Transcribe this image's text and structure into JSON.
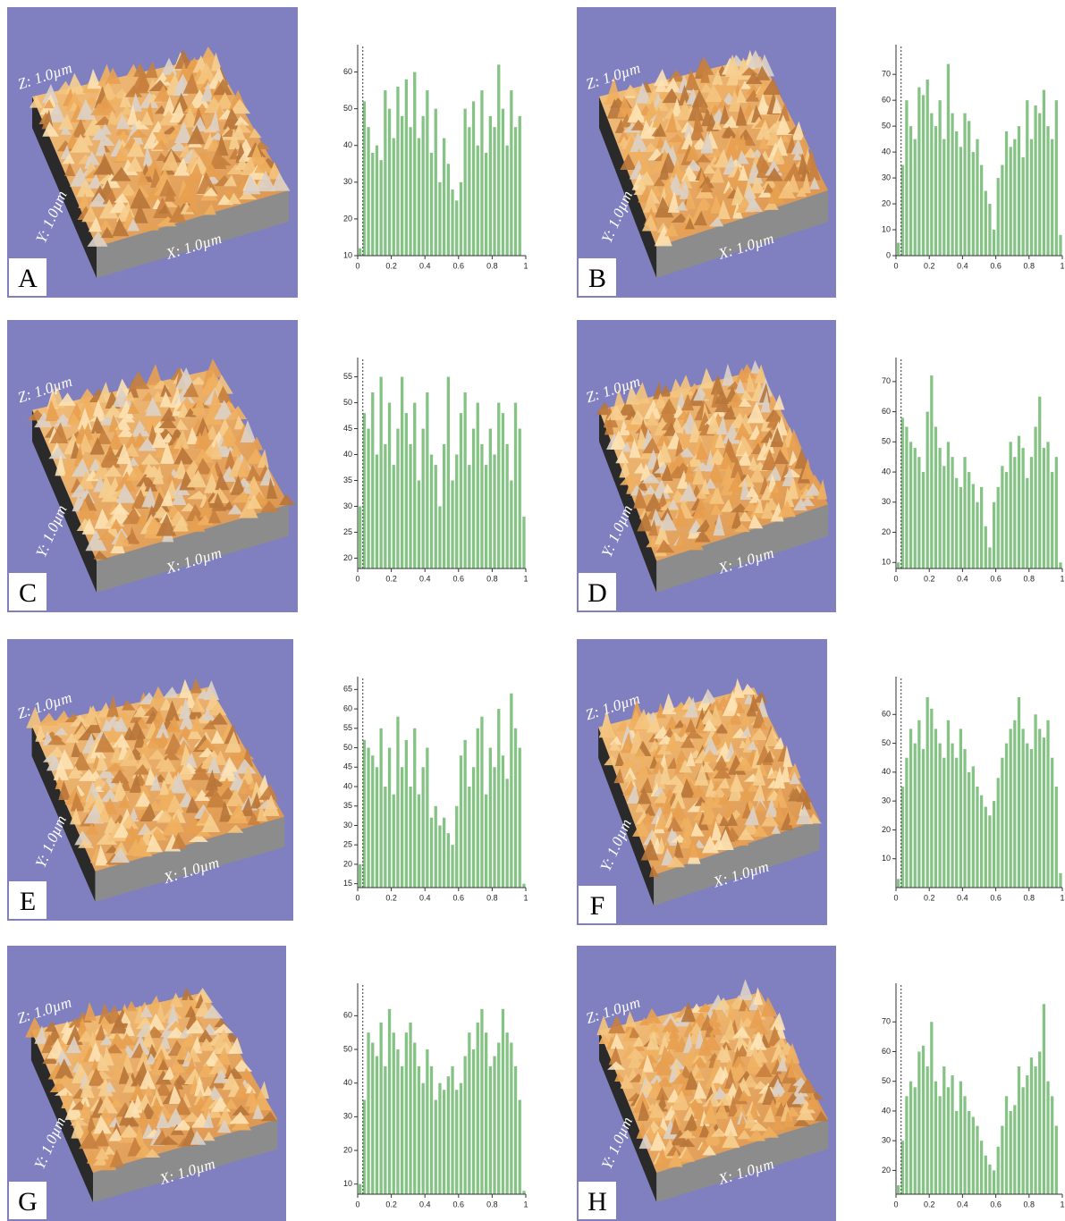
{
  "panels": [
    {
      "label": "A",
      "z": "Z: 1.0µm",
      "y": "Y: 1.0µm",
      "x": "X: 1.0µm"
    },
    {
      "label": "B",
      "z": "Z: 1.0µm",
      "y": "Y: 1.0µm",
      "x": "X: 1.0µm"
    },
    {
      "label": "C",
      "z": "Z: 1.0µm",
      "y": "Y: 1.0µm",
      "x": "X: 1.0µm"
    },
    {
      "label": "D",
      "z": "Z: 1.0µm",
      "y": "Y: 1.0µm",
      "x": "X: 1.0µm"
    },
    {
      "label": "E",
      "z": "Z: 1.0µm",
      "y": "Y: 1.0µm",
      "x": "X: 1.0µm"
    },
    {
      "label": "F",
      "z": "Z: 1.0µm",
      "y": "Y: 1.0µm",
      "x": "X: 1.0µm"
    },
    {
      "label": "G",
      "z": "Z: 1.0µm",
      "y": "Y: 1.0µm",
      "x": "X: 1.0µm"
    },
    {
      "label": "H",
      "z": "Z: 1.0µm",
      "y": "Y: 1.0µm",
      "x": "X: 1.0µm"
    }
  ],
  "chart_data": [
    {
      "type": "bar",
      "color": "#84c384",
      "xlim": [
        0,
        1
      ],
      "xticks": [
        0,
        0.2,
        0.4,
        0.6,
        0.8,
        1
      ],
      "ylim": [
        10,
        65
      ],
      "yticks": [
        10,
        20,
        30,
        40,
        50,
        60
      ],
      "x": [
        0,
        0.025,
        0.05,
        0.075,
        0.1,
        0.125,
        0.15,
        0.175,
        0.2,
        0.225,
        0.25,
        0.275,
        0.3,
        0.325,
        0.35,
        0.375,
        0.4,
        0.425,
        0.45,
        0.475,
        0.5,
        0.525,
        0.55,
        0.575,
        0.6,
        0.625,
        0.65,
        0.675,
        0.7,
        0.725,
        0.75,
        0.775,
        0.8,
        0.825,
        0.85,
        0.875,
        0.9,
        0.925,
        0.95,
        0.975
      ],
      "values": [
        12,
        52,
        45,
        38,
        40,
        36,
        55,
        50,
        42,
        56,
        48,
        58,
        45,
        60,
        42,
        48,
        55,
        38,
        50,
        30,
        42,
        35,
        28,
        25,
        30,
        50,
        45,
        52,
        40,
        55,
        38,
        48,
        45,
        62,
        50,
        40,
        55,
        45,
        48,
        10
      ]
    },
    {
      "type": "bar",
      "color": "#84c384",
      "xlim": [
        0,
        1
      ],
      "xticks": [
        0,
        0.2,
        0.4,
        0.6,
        0.8,
        1
      ],
      "ylim": [
        0,
        78
      ],
      "yticks": [
        0,
        10,
        20,
        30,
        40,
        50,
        60,
        70
      ],
      "x": [
        0,
        0.025,
        0.05,
        0.075,
        0.1,
        0.125,
        0.15,
        0.175,
        0.2,
        0.225,
        0.25,
        0.275,
        0.3,
        0.325,
        0.35,
        0.375,
        0.4,
        0.425,
        0.45,
        0.475,
        0.5,
        0.525,
        0.55,
        0.575,
        0.6,
        0.625,
        0.65,
        0.675,
        0.7,
        0.725,
        0.75,
        0.775,
        0.8,
        0.825,
        0.85,
        0.875,
        0.9,
        0.925,
        0.95,
        0.975
      ],
      "values": [
        5,
        35,
        60,
        50,
        45,
        65,
        62,
        68,
        55,
        50,
        60,
        45,
        74,
        55,
        48,
        42,
        55,
        52,
        40,
        45,
        35,
        25,
        20,
        10,
        30,
        35,
        48,
        42,
        45,
        50,
        38,
        60,
        45,
        58,
        55,
        64,
        50,
        45,
        60,
        8
      ]
    },
    {
      "type": "bar",
      "color": "#84c384",
      "xlim": [
        0,
        1
      ],
      "xticks": [
        0,
        0.2,
        0.4,
        0.6,
        0.8,
        1
      ],
      "ylim": [
        18,
        57
      ],
      "yticks": [
        20,
        25,
        30,
        35,
        40,
        45,
        50,
        55
      ],
      "x": [
        0,
        0.025,
        0.05,
        0.075,
        0.1,
        0.125,
        0.15,
        0.175,
        0.2,
        0.225,
        0.25,
        0.275,
        0.3,
        0.325,
        0.35,
        0.375,
        0.4,
        0.425,
        0.45,
        0.475,
        0.5,
        0.525,
        0.55,
        0.575,
        0.6,
        0.625,
        0.65,
        0.675,
        0.7,
        0.725,
        0.75,
        0.775,
        0.8,
        0.825,
        0.85,
        0.875,
        0.9,
        0.925,
        0.95,
        0.975
      ],
      "values": [
        30,
        48,
        45,
        52,
        40,
        55,
        42,
        50,
        38,
        45,
        55,
        48,
        42,
        50,
        35,
        45,
        52,
        40,
        38,
        30,
        42,
        55,
        35,
        40,
        48,
        52,
        38,
        45,
        50,
        42,
        38,
        45,
        40,
        50,
        48,
        42,
        35,
        50,
        45,
        28
      ]
    },
    {
      "type": "bar",
      "color": "#84c384",
      "xlim": [
        0,
        1
      ],
      "xticks": [
        0,
        0.2,
        0.4,
        0.6,
        0.8,
        1
      ],
      "ylim": [
        8,
        75
      ],
      "yticks": [
        10,
        20,
        30,
        40,
        50,
        60,
        70
      ],
      "x": [
        0,
        0.025,
        0.05,
        0.075,
        0.1,
        0.125,
        0.15,
        0.175,
        0.2,
        0.225,
        0.25,
        0.275,
        0.3,
        0.325,
        0.35,
        0.375,
        0.4,
        0.425,
        0.45,
        0.475,
        0.5,
        0.525,
        0.55,
        0.575,
        0.6,
        0.625,
        0.65,
        0.675,
        0.7,
        0.725,
        0.75,
        0.775,
        0.8,
        0.825,
        0.85,
        0.875,
        0.9,
        0.925,
        0.95,
        0.975
      ],
      "values": [
        10,
        58,
        55,
        50,
        48,
        45,
        40,
        60,
        72,
        55,
        48,
        42,
        50,
        45,
        38,
        35,
        45,
        40,
        36,
        30,
        35,
        22,
        15,
        30,
        35,
        42,
        40,
        50,
        45,
        52,
        48,
        38,
        45,
        55,
        65,
        48,
        50,
        40,
        45,
        10
      ]
    },
    {
      "type": "bar",
      "color": "#84c384",
      "xlim": [
        0,
        1
      ],
      "xticks": [
        0,
        0.2,
        0.4,
        0.6,
        0.8,
        1
      ],
      "ylim": [
        14,
        66
      ],
      "yticks": [
        15,
        20,
        25,
        30,
        35,
        40,
        45,
        50,
        55,
        60,
        65
      ],
      "x": [
        0,
        0.025,
        0.05,
        0.075,
        0.1,
        0.125,
        0.15,
        0.175,
        0.2,
        0.225,
        0.25,
        0.275,
        0.3,
        0.325,
        0.35,
        0.375,
        0.4,
        0.425,
        0.45,
        0.475,
        0.5,
        0.525,
        0.55,
        0.575,
        0.6,
        0.625,
        0.65,
        0.675,
        0.7,
        0.725,
        0.75,
        0.775,
        0.8,
        0.825,
        0.85,
        0.875,
        0.9,
        0.925,
        0.95,
        0.975
      ],
      "values": [
        20,
        52,
        50,
        48,
        45,
        55,
        40,
        50,
        38,
        58,
        45,
        52,
        40,
        55,
        38,
        45,
        50,
        32,
        35,
        30,
        32,
        28,
        25,
        35,
        48,
        52,
        40,
        45,
        55,
        58,
        38,
        50,
        45,
        60,
        48,
        42,
        64,
        55,
        50,
        15
      ]
    },
    {
      "type": "bar",
      "color": "#84c384",
      "xlim": [
        0,
        1
      ],
      "xticks": [
        0,
        0.2,
        0.4,
        0.6,
        0.8,
        1
      ],
      "ylim": [
        0,
        70
      ],
      "yticks": [
        10,
        20,
        30,
        40,
        50,
        60
      ],
      "x": [
        0,
        0.025,
        0.05,
        0.075,
        0.1,
        0.125,
        0.15,
        0.175,
        0.2,
        0.225,
        0.25,
        0.275,
        0.3,
        0.325,
        0.35,
        0.375,
        0.4,
        0.425,
        0.45,
        0.475,
        0.5,
        0.525,
        0.55,
        0.575,
        0.6,
        0.625,
        0.65,
        0.675,
        0.7,
        0.725,
        0.75,
        0.775,
        0.8,
        0.825,
        0.85,
        0.875,
        0.9,
        0.925,
        0.95,
        0.975
      ],
      "values": [
        3,
        35,
        45,
        55,
        50,
        58,
        48,
        66,
        62,
        55,
        50,
        45,
        58,
        50,
        45,
        55,
        48,
        40,
        42,
        35,
        32,
        28,
        25,
        30,
        38,
        45,
        50,
        55,
        58,
        66,
        55,
        50,
        48,
        60,
        55,
        52,
        58,
        45,
        35,
        5
      ]
    },
    {
      "type": "bar",
      "color": "#84c384",
      "xlim": [
        0,
        1
      ],
      "xticks": [
        0,
        0.2,
        0.4,
        0.6,
        0.8,
        1
      ],
      "ylim": [
        7,
        67
      ],
      "yticks": [
        10,
        20,
        30,
        40,
        50,
        60
      ],
      "x": [
        0,
        0.025,
        0.05,
        0.075,
        0.1,
        0.125,
        0.15,
        0.175,
        0.2,
        0.225,
        0.25,
        0.275,
        0.3,
        0.325,
        0.35,
        0.375,
        0.4,
        0.425,
        0.45,
        0.475,
        0.5,
        0.525,
        0.55,
        0.575,
        0.6,
        0.625,
        0.65,
        0.675,
        0.7,
        0.725,
        0.75,
        0.775,
        0.8,
        0.825,
        0.85,
        0.875,
        0.9,
        0.925,
        0.95,
        0.975
      ],
      "values": [
        10,
        35,
        55,
        52,
        48,
        58,
        45,
        62,
        55,
        50,
        45,
        55,
        58,
        52,
        45,
        40,
        50,
        45,
        35,
        40,
        38,
        42,
        45,
        38,
        40,
        48,
        55,
        50,
        58,
        62,
        55,
        45,
        48,
        52,
        62,
        55,
        52,
        45,
        35,
        8
      ]
    },
    {
      "type": "bar",
      "color": "#84c384",
      "xlim": [
        0,
        1
      ],
      "xticks": [
        0,
        0.2,
        0.4,
        0.6,
        0.8,
        1
      ],
      "ylim": [
        12,
        80
      ],
      "yticks": [
        20,
        30,
        40,
        50,
        60,
        70
      ],
      "x": [
        0,
        0.025,
        0.05,
        0.075,
        0.1,
        0.125,
        0.15,
        0.175,
        0.2,
        0.225,
        0.25,
        0.275,
        0.3,
        0.325,
        0.35,
        0.375,
        0.4,
        0.425,
        0.45,
        0.475,
        0.5,
        0.525,
        0.55,
        0.575,
        0.6,
        0.625,
        0.65,
        0.675,
        0.7,
        0.725,
        0.75,
        0.775,
        0.8,
        0.825,
        0.85,
        0.875,
        0.9,
        0.925,
        0.95,
        0.975
      ],
      "values": [
        15,
        30,
        45,
        50,
        48,
        60,
        62,
        55,
        70,
        50,
        45,
        55,
        48,
        52,
        40,
        50,
        45,
        40,
        38,
        35,
        30,
        25,
        22,
        20,
        28,
        35,
        45,
        40,
        42,
        55,
        48,
        52,
        58,
        55,
        60,
        76,
        50,
        45,
        35,
        12
      ]
    }
  ]
}
